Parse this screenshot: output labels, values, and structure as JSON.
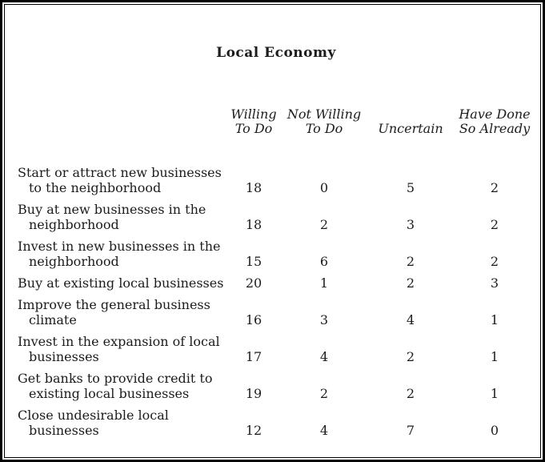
{
  "title": "Local Economy",
  "colors": {
    "background": "#ffffff",
    "border": "#000000",
    "text": "#1c1c1c"
  },
  "table": {
    "headers": [
      [
        "Willing",
        "To Do"
      ],
      [
        "Not Willing",
        "To Do"
      ],
      [
        "Uncertain"
      ],
      [
        "Have Done",
        "So Already"
      ]
    ],
    "rows": [
      {
        "label_lines": [
          "Start or attract new businesses",
          "to the neighborhood"
        ],
        "values": [
          18,
          0,
          5,
          2
        ]
      },
      {
        "label_lines": [
          "Buy at new businesses in the",
          "neighborhood"
        ],
        "values": [
          18,
          2,
          3,
          2
        ]
      },
      {
        "label_lines": [
          "Invest in new businesses in the",
          "neighborhood"
        ],
        "values": [
          15,
          6,
          2,
          2
        ]
      },
      {
        "label_lines": [
          "Buy at existing local businesses"
        ],
        "values": [
          20,
          1,
          2,
          3
        ]
      },
      {
        "label_lines": [
          "Improve the general business",
          "climate"
        ],
        "values": [
          16,
          3,
          4,
          1
        ]
      },
      {
        "label_lines": [
          "Invest in the expansion of local",
          "businesses"
        ],
        "values": [
          17,
          4,
          2,
          1
        ]
      },
      {
        "label_lines": [
          "Get banks to provide credit to",
          "existing local businesses"
        ],
        "values": [
          19,
          2,
          2,
          1
        ]
      },
      {
        "label_lines": [
          "Close undesirable local",
          "businesses"
        ],
        "values": [
          12,
          4,
          7,
          0
        ]
      }
    ]
  }
}
